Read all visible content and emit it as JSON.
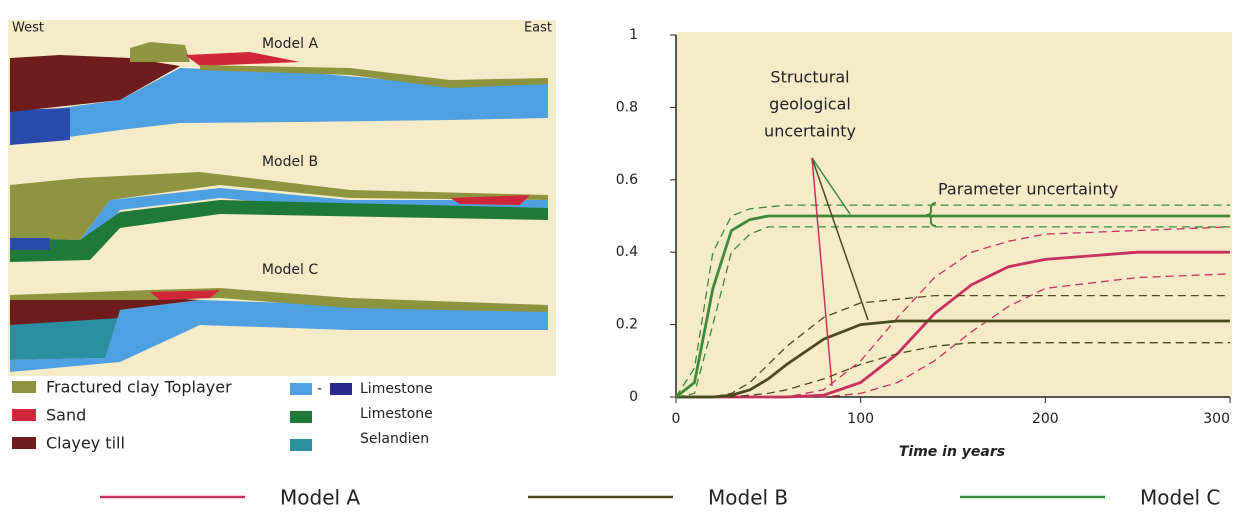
{
  "cross_section": {
    "west": "West",
    "east": "East",
    "models": [
      "Model A",
      "Model B",
      "Model C"
    ],
    "legend_left": [
      "Fractured clay Toplayer",
      "Sand",
      "Clayey till"
    ],
    "legend_right": [
      {
        "label": "Limestone",
        "joiner": "-"
      },
      {
        "label": "Limestone"
      },
      {
        "label": "Selandien"
      }
    ]
  },
  "chart_data": {
    "type": "line",
    "x_label": "Time in years",
    "annotations": [
      {
        "lines": [
          "Structural",
          "geological",
          "uncertainty"
        ]
      },
      {
        "lines": [
          "Parameter uncertainty"
        ]
      }
    ],
    "x": [
      0,
      10,
      20,
      30,
      40,
      50,
      60,
      80,
      100,
      120,
      140,
      160,
      180,
      200,
      250,
      300
    ],
    "series": [
      {
        "name": "Model A",
        "color": "#c8305e",
        "values": [
          0,
          0,
          0,
          0,
          0,
          0,
          0,
          0.005,
          0.04,
          0.12,
          0.23,
          0.31,
          0.36,
          0.38,
          0.4,
          0.4
        ],
        "upper": [
          0,
          0,
          0,
          0,
          0,
          0,
          0,
          0.02,
          0.1,
          0.22,
          0.33,
          0.4,
          0.43,
          0.45,
          0.46,
          0.47
        ],
        "lower": [
          0,
          0,
          0,
          0,
          0,
          0,
          0,
          0,
          0.01,
          0.04,
          0.1,
          0.18,
          0.25,
          0.3,
          0.33,
          0.34
        ]
      },
      {
        "name": "Model B",
        "color": "#4a4a1e",
        "values": [
          0,
          0,
          0,
          0.005,
          0.02,
          0.05,
          0.09,
          0.16,
          0.2,
          0.21,
          0.21,
          0.21,
          0.21,
          0.21,
          0.21,
          0.21
        ],
        "upper": [
          0,
          0,
          0,
          0.01,
          0.04,
          0.09,
          0.14,
          0.22,
          0.26,
          0.27,
          0.28,
          0.28,
          0.28,
          0.28,
          0.28,
          0.28
        ],
        "lower": [
          0,
          0,
          0,
          0,
          0.005,
          0.01,
          0.02,
          0.05,
          0.09,
          0.12,
          0.14,
          0.15,
          0.15,
          0.15,
          0.15,
          0.15
        ]
      },
      {
        "name": "Model C",
        "color": "#3d8a3a",
        "values": [
          0,
          0.04,
          0.3,
          0.46,
          0.49,
          0.5,
          0.5,
          0.5,
          0.5,
          0.5,
          0.5,
          0.5,
          0.5,
          0.5,
          0.5,
          0.5
        ],
        "upper": [
          0,
          0.08,
          0.4,
          0.5,
          0.52,
          0.525,
          0.53,
          0.53,
          0.53,
          0.53,
          0.53,
          0.53,
          0.53,
          0.53,
          0.53,
          0.53
        ],
        "lower": [
          0,
          0.01,
          0.2,
          0.4,
          0.45,
          0.47,
          0.47,
          0.47,
          0.47,
          0.47,
          0.47,
          0.47,
          0.47,
          0.47,
          0.47,
          0.47
        ]
      }
    ],
    "xlim": [
      0,
      300
    ],
    "xticks": [
      0,
      100,
      200,
      300
    ],
    "ylim": [
      0,
      1
    ],
    "yticks": [
      0,
      0.2,
      0.4,
      0.6,
      0.8,
      1
    ],
    "background": "#f6ebc9"
  }
}
